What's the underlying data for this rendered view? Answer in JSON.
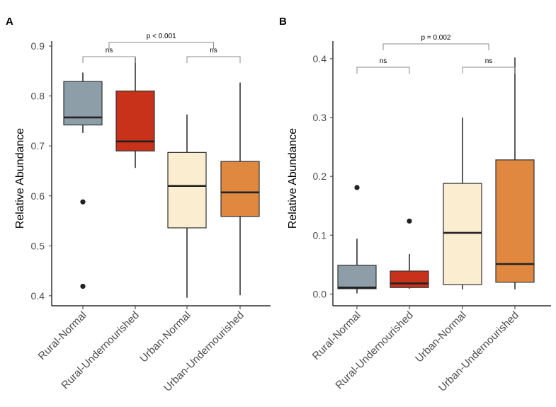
{
  "chart_data": [
    {
      "type": "box",
      "panel_label": "A",
      "ylabel": "Relative Abundance",
      "ylim": [
        0.38,
        0.91
      ],
      "yticks": [
        "0.4",
        "0.5",
        "0.6",
        "0.7",
        "0.8",
        "0.9"
      ],
      "categories": [
        "Rural-Normal",
        "Rural-Undernourished",
        "Urban-Normal",
        "Urban-Undernourished"
      ],
      "colors": [
        "#8d9ea8",
        "#c8321a",
        "#fbedd0",
        "#e0883f"
      ],
      "boxes": [
        {
          "whisker_low": 0.726,
          "q1": 0.742,
          "median": 0.757,
          "q3": 0.829,
          "whisker_high": 0.847,
          "outliers": [
            0.588,
            0.419
          ]
        },
        {
          "whisker_low": 0.656,
          "q1": 0.69,
          "median": 0.709,
          "q3": 0.81,
          "whisker_high": 0.877,
          "outliers": []
        },
        {
          "whisker_low": 0.396,
          "q1": 0.536,
          "median": 0.62,
          "q3": 0.687,
          "whisker_high": 0.763,
          "outliers": []
        },
        {
          "whisker_low": 0.401,
          "q1": 0.559,
          "median": 0.607,
          "q3": 0.669,
          "whisker_high": 0.827,
          "outliers": []
        }
      ],
      "annotations": [
        {
          "label": "p < 0.001",
          "from": 0.5,
          "to": 2.5,
          "level": 2
        },
        {
          "label": "ns",
          "from": 0,
          "to": 1,
          "level": 1
        },
        {
          "label": "ns",
          "from": 2,
          "to": 3,
          "level": 1
        }
      ]
    },
    {
      "type": "box",
      "panel_label": "B",
      "ylabel": "Relative Abundance",
      "ylim": [
        -0.02,
        0.43
      ],
      "yticks": [
        "0.0",
        "0.1",
        "0.2",
        "0.3",
        "0.4"
      ],
      "categories": [
        "Rural-Normal",
        "Rural-Undernourished",
        "Urban-Normal",
        "Urban-Undernourished"
      ],
      "colors": [
        "#8d9ea8",
        "#c8321a",
        "#fbedd0",
        "#e0883f"
      ],
      "boxes": [
        {
          "whisker_low": 0.001,
          "q1": 0.009,
          "median": 0.011,
          "q3": 0.049,
          "whisker_high": 0.094,
          "outliers": [
            0.181
          ]
        },
        {
          "whisker_low": 0.009,
          "q1": 0.011,
          "median": 0.018,
          "q3": 0.039,
          "whisker_high": 0.068,
          "outliers": [
            0.124
          ]
        },
        {
          "whisker_low": 0.008,
          "q1": 0.016,
          "median": 0.104,
          "q3": 0.188,
          "whisker_high": 0.3,
          "outliers": []
        },
        {
          "whisker_low": 0.008,
          "q1": 0.02,
          "median": 0.051,
          "q3": 0.228,
          "whisker_high": 0.402,
          "outliers": []
        }
      ],
      "annotations": [
        {
          "label": "p = 0.002",
          "from": 0.5,
          "to": 2.5,
          "level": 2
        },
        {
          "label": "ns",
          "from": 0,
          "to": 1,
          "level": 1
        },
        {
          "label": "ns",
          "from": 2,
          "to": 3,
          "level": 1
        }
      ]
    }
  ]
}
